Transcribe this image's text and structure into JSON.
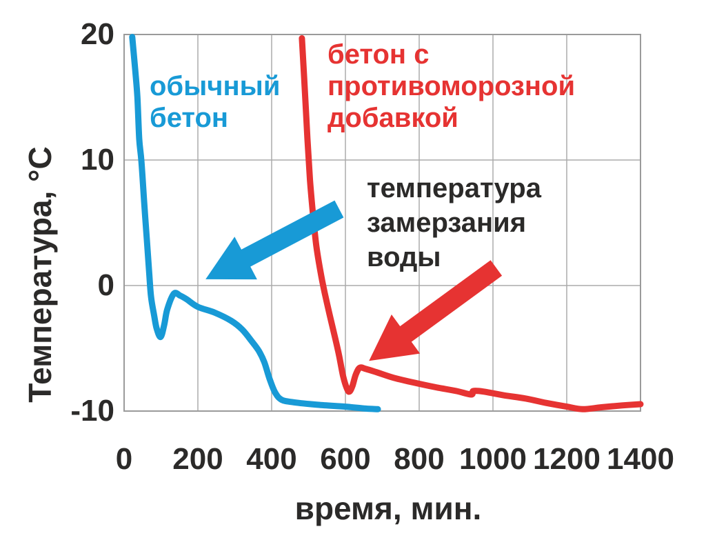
{
  "chart_data": {
    "type": "line",
    "title": "",
    "xlabel": "время, мин.",
    "ylabel": "Температура, °С",
    "xlim": [
      0,
      1400
    ],
    "ylim": [
      -10,
      20
    ],
    "xticks": [
      0,
      200,
      400,
      600,
      800,
      1000,
      1200,
      1400
    ],
    "yticks": [
      20,
      10,
      0,
      -10
    ],
    "grid": true,
    "legend_position": "inline-annotations",
    "colors": {
      "blue": "#189ad6",
      "red": "#e63332",
      "text": "#2b2a29",
      "grid": "#ababab",
      "border": "#9a9a9a",
      "background": "#ffffff"
    },
    "series": [
      {
        "name": "обычный бетон",
        "color": "#189ad6",
        "points": [
          [
            22,
            19.8
          ],
          [
            30,
            17.2
          ],
          [
            36,
            15
          ],
          [
            41,
            11.7
          ],
          [
            47,
            9.9
          ],
          [
            54,
            6.8
          ],
          [
            62,
            3.5
          ],
          [
            68,
            1
          ],
          [
            73,
            -0.9
          ],
          [
            81,
            -2.3
          ],
          [
            88,
            -3.4
          ],
          [
            99,
            -4.1
          ],
          [
            109,
            -3.1
          ],
          [
            117,
            -1.9
          ],
          [
            135,
            -0.65
          ],
          [
            152,
            -0.8
          ],
          [
            170,
            -1.1
          ],
          [
            200,
            -1.7
          ],
          [
            245,
            -2.15
          ],
          [
            290,
            -2.8
          ],
          [
            320,
            -3.5
          ],
          [
            345,
            -4.4
          ],
          [
            365,
            -5.2
          ],
          [
            380,
            -6.1
          ],
          [
            394,
            -7.4
          ],
          [
            409,
            -8.5
          ],
          [
            427,
            -9.1
          ],
          [
            460,
            -9.3
          ],
          [
            525,
            -9.5
          ],
          [
            600,
            -9.65
          ],
          [
            655,
            -9.8
          ],
          [
            688,
            -9.85
          ]
        ]
      },
      {
        "name": "бетон с противоморозной добавкой",
        "color": "#e63332",
        "points": [
          [
            482,
            19.7
          ],
          [
            489,
            16.1
          ],
          [
            497,
            11.7
          ],
          [
            504,
            8.4
          ],
          [
            512,
            5.7
          ],
          [
            521,
            3.2
          ],
          [
            533,
            1
          ],
          [
            544,
            -0.6
          ],
          [
            557,
            -2.3
          ],
          [
            570,
            -3.9
          ],
          [
            583,
            -5.6
          ],
          [
            594,
            -7.25
          ],
          [
            604,
            -8.2
          ],
          [
            611,
            -8.45
          ],
          [
            619,
            -8
          ],
          [
            628,
            -7.1
          ],
          [
            639,
            -6.55
          ],
          [
            656,
            -6.65
          ],
          [
            684,
            -6.9
          ],
          [
            731,
            -7.35
          ],
          [
            788,
            -7.75
          ],
          [
            844,
            -8.1
          ],
          [
            900,
            -8.4
          ],
          [
            941,
            -8.68
          ],
          [
            947,
            -8.4
          ],
          [
            975,
            -8.45
          ],
          [
            1031,
            -8.75
          ],
          [
            1088,
            -9
          ],
          [
            1144,
            -9.35
          ],
          [
            1200,
            -9.65
          ],
          [
            1243,
            -9.85
          ],
          [
            1294,
            -9.7
          ],
          [
            1350,
            -9.55
          ],
          [
            1400,
            -9.45
          ]
        ]
      }
    ],
    "annotations": {
      "blue_label": {
        "text": "обычный\nбетон",
        "color": "#189ad6"
      },
      "red_label": {
        "text": "бетон с\nпротивоморозной\nдобавкой",
        "color": "#e63332"
      },
      "freezing_label": {
        "text": "температура\nзамерзания\nводы",
        "color": "#2b2a29"
      },
      "arrows": [
        {
          "name": "blue-arrow",
          "color": "#189ad6",
          "tail": [
            583,
            6.1
          ],
          "tip": [
            221,
            0.5
          ]
        },
        {
          "name": "red-arrow",
          "color": "#e63332",
          "tail": [
            1009,
            1.4
          ],
          "tip": [
            664,
            -6.0
          ]
        }
      ]
    }
  }
}
